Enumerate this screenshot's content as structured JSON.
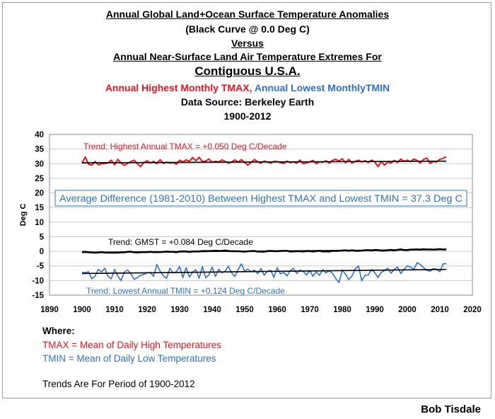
{
  "titles": {
    "line1": "Annual Global Land+Ocean Surface Temperature Anomalies",
    "line2": "(Black Curve @ 0.0 Deg C)",
    "line3": "Versus",
    "line4": "Annual Near-Surface Land Air Temperature Extremes For",
    "line5": "Contiguous U.S.A.",
    "line6_red": "Annual Highest Monthly TMAX,",
    "line6_blue": "Annual Lowest MonthlyTMIN",
    "line7": "Data Source: Berkeley Earth",
    "line8": "1900-2012"
  },
  "notes": {
    "where": "Where:",
    "tmax": "TMAX = Mean of Daily High Temperatures",
    "tmin": "TMIN = Mean of Daily Low Temperatures",
    "trends": "Trends Are For Period of 1900-2012"
  },
  "credit": "Bob Tisdale",
  "colors": {
    "tmax": "#e8141b",
    "tmin": "#2f6fd1",
    "gmst": "#000000",
    "trend": "#000000"
  },
  "chart_data": {
    "type": "line",
    "ylabel": "Deg C",
    "xlabel": "",
    "xlim": [
      1890,
      2020
    ],
    "ylim": [
      -15,
      40
    ],
    "xticks": [
      1890,
      1900,
      1910,
      1920,
      1930,
      1940,
      1950,
      1960,
      1970,
      1980,
      1990,
      2000,
      2010,
      2020
    ],
    "yticks": [
      -15,
      -10,
      -5,
      0,
      5,
      10,
      15,
      20,
      25,
      30,
      35,
      40
    ],
    "x_start": 1900,
    "annotations": {
      "tmax_trend": "Trend: Highest Annual TMAX = +0.050 Deg C/Decade",
      "difference": "Average Difference (1981-2010) Between Highest TMAX and Lowest TMIN = 37.3  Deg C",
      "gmst_trend": "Trend: GMST = +0.084 Deg C/Decade",
      "tmin_trend": "Trend: Lowest Annual TMIN = +0.124 Deg C/Decade"
    },
    "series": [
      {
        "name": "Annual Highest Monthly TMAX",
        "color": "#e8141b",
        "values": [
          30.2,
          32.3,
          29.8,
          29.5,
          30.8,
          29.6,
          30.0,
          30.0,
          30.3,
          31.2,
          29.6,
          31.5,
          30.2,
          29.4,
          30.1,
          30.7,
          31.2,
          30.0,
          29.0,
          30.4,
          31.0,
          30.2,
          30.8,
          30.0,
          31.4,
          30.1,
          30.5,
          30.2,
          30.4,
          29.8,
          31.2,
          30.6,
          31.3,
          30.8,
          32.1,
          31.0,
          32.2,
          30.7,
          30.9,
          31.6,
          30.5,
          30.8,
          30.6,
          31.3,
          30.8,
          30.2,
          30.6,
          31.3,
          30.5,
          31.4,
          30.4,
          29.5,
          30.5,
          31.4,
          30.7,
          30.2,
          30.9,
          30.6,
          30.2,
          30.8,
          30.7,
          30.4,
          30.1,
          30.9,
          30.4,
          30.6,
          30.2,
          31.2,
          30.0,
          30.3,
          30.6,
          31.1,
          30.0,
          30.6,
          30.5,
          31.0,
          30.2,
          31.1,
          31.5,
          30.9,
          31.7,
          30.3,
          31.5,
          30.2,
          30.8,
          31.2,
          30.6,
          31.0,
          30.4,
          31.2,
          30.6,
          29.0,
          30.8,
          29.5,
          30.6,
          30.2,
          31.1,
          30.4,
          31.6,
          30.8,
          31.2,
          30.7,
          31.6,
          31.1,
          30.2,
          31.5,
          31.9,
          30.1,
          30.8,
          30.6,
          31.5,
          31.8,
          32.4
        ]
      },
      {
        "name": "Annual Lowest Monthly TMIN",
        "color": "#2f6fd1",
        "values": [
          -7.2,
          -7.3,
          -7.0,
          -9.4,
          -8.5,
          -6.2,
          -7.0,
          -5.8,
          -8.6,
          -9.4,
          -6.2,
          -8.4,
          -10.0,
          -7.1,
          -6.4,
          -7.6,
          -9.6,
          -9.0,
          -8.2,
          -7.9,
          -7.4,
          -7.2,
          -8.6,
          -4.5,
          -6.8,
          -8.4,
          -9.2,
          -5.8,
          -7.4,
          -7.0,
          -5.2,
          -9.0,
          -5.6,
          -8.8,
          -7.1,
          -6.3,
          -9.2,
          -5.2,
          -9.0,
          -8.1,
          -5.4,
          -8.6,
          -6.1,
          -7.4,
          -6.8,
          -5.1,
          -7.4,
          -8.6,
          -6.2,
          -4.3,
          -6.9,
          -6.1,
          -7.0,
          -6.4,
          -7.7,
          -5.9,
          -8.2,
          -6.8,
          -6.5,
          -8.9,
          -5.6,
          -7.7,
          -7.2,
          -8.4,
          -6.7,
          -5.8,
          -7.6,
          -6.4,
          -6.9,
          -8.1,
          -6.6,
          -8.5,
          -7.0,
          -8.2,
          -6.3,
          -7.4,
          -6.7,
          -7.5,
          -9.3,
          -10.7,
          -6.4,
          -7.8,
          -9.7,
          -8.4,
          -6.0,
          -5.0,
          -10.1,
          -8.2,
          -8.1,
          -6.2,
          -7.3,
          -9.0,
          -7.2,
          -6.6,
          -5.8,
          -7.5,
          -6.2,
          -5.3,
          -7.6,
          -6.1,
          -5.0,
          -5.4,
          -6.2,
          -3.9,
          -4.5,
          -5.6,
          -6.5,
          -6.8,
          -5.9,
          -6.1,
          -7.0,
          -4.3,
          -4.2
        ]
      },
      {
        "name": "Global Land+Ocean Surface Temperature Anomalies (GMST)",
        "color": "#000000",
        "values": [
          -0.25,
          -0.18,
          -0.32,
          -0.4,
          -0.45,
          -0.38,
          -0.28,
          -0.42,
          -0.45,
          -0.44,
          -0.42,
          -0.44,
          -0.36,
          -0.35,
          -0.17,
          -0.12,
          -0.32,
          -0.4,
          -0.3,
          -0.28,
          -0.26,
          -0.18,
          -0.26,
          -0.24,
          -0.26,
          -0.19,
          -0.08,
          -0.16,
          -0.16,
          -0.3,
          -0.08,
          -0.03,
          -0.05,
          -0.19,
          -0.04,
          -0.06,
          -0.02,
          0.08,
          0.1,
          0.08,
          0.15,
          0.18,
          0.14,
          0.16,
          0.28,
          0.15,
          0.02,
          0.04,
          0.02,
          -0.02,
          -0.12,
          0.02,
          0.06,
          0.12,
          -0.1,
          -0.1,
          -0.14,
          0.1,
          0.12,
          0.08,
          0.04,
          0.12,
          0.14,
          0.16,
          -0.08,
          -0.02,
          0.02,
          0.04,
          -0.04,
          0.1,
          0.06,
          -0.04,
          0.06,
          0.18,
          -0.04,
          0.0,
          -0.08,
          0.2,
          0.12,
          0.2,
          0.28,
          0.34,
          0.18,
          0.36,
          0.2,
          0.16,
          0.24,
          0.38,
          0.4,
          0.32,
          0.46,
          0.44,
          0.24,
          0.28,
          0.36,
          0.48,
          0.34,
          0.5,
          0.66,
          0.44,
          0.44,
          0.58,
          0.62,
          0.64,
          0.58,
          0.7,
          0.62,
          0.64,
          0.58,
          0.64,
          0.72,
          0.6,
          0.64
        ]
      }
    ],
    "trend_lines": [
      {
        "name": "Trend TMAX",
        "x": [
          1900,
          2012
        ],
        "y": [
          30.3,
          30.86
        ]
      },
      {
        "name": "Trend TMIN",
        "x": [
          1900,
          2012
        ],
        "y": [
          -7.6,
          -6.2
        ]
      },
      {
        "name": "Trend GMST",
        "x": [
          1900,
          2012
        ],
        "y": [
          -0.37,
          0.57
        ]
      }
    ]
  }
}
